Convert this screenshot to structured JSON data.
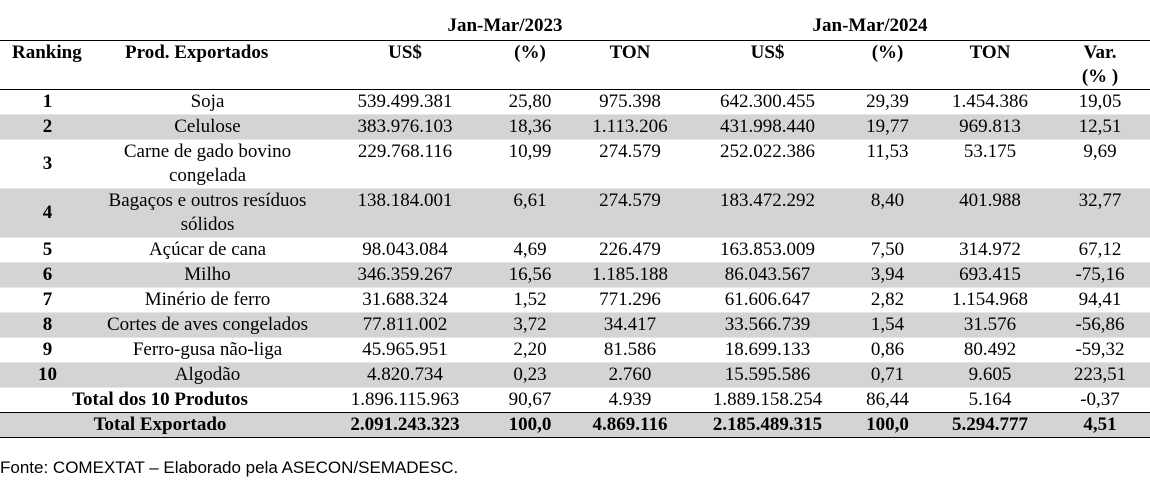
{
  "periods": [
    "Jan-Mar/2023",
    "Jan-Mar/2024"
  ],
  "headers": [
    "Ranking",
    "Prod. Exportados",
    "US$",
    "(%)",
    "TON",
    "US$",
    "(%)",
    "TON",
    "Var.\n(% )"
  ],
  "rows": [
    {
      "rank": "1",
      "product": "Soja",
      "usd23": "539.499.381",
      "pct23": "25,80",
      "ton23": "975.398",
      "usd24": "642.300.455",
      "pct24": "29,39",
      "ton24": "1.454.386",
      "var": "19,05"
    },
    {
      "rank": "2",
      "product": "Celulose",
      "usd23": "383.976.103",
      "pct23": "18,36",
      "ton23": "1.113.206",
      "usd24": "431.998.440",
      "pct24": "19,77",
      "ton24": "969.813",
      "var": "12,51"
    },
    {
      "rank": "3",
      "product": "Carne de gado bovino congelada",
      "usd23": "229.768.116",
      "pct23": "10,99",
      "ton23": "274.579",
      "usd24": "252.022.386",
      "pct24": "11,53",
      "ton24": "53.175",
      "var": "9,69"
    },
    {
      "rank": "4",
      "product": "Bagaços e outros resíduos sólidos",
      "usd23": "138.184.001",
      "pct23": "6,61",
      "ton23": "274.579",
      "usd24": "183.472.292",
      "pct24": "8,40",
      "ton24": "401.988",
      "var": "32,77"
    },
    {
      "rank": "5",
      "product": "Açúcar de cana",
      "usd23": "98.043.084",
      "pct23": "4,69",
      "ton23": "226.479",
      "usd24": "163.853.009",
      "pct24": "7,50",
      "ton24": "314.972",
      "var": "67,12"
    },
    {
      "rank": "6",
      "product": "Milho",
      "usd23": "346.359.267",
      "pct23": "16,56",
      "ton23": "1.185.188",
      "usd24": "86.043.567",
      "pct24": "3,94",
      "ton24": "693.415",
      "var": "-75,16"
    },
    {
      "rank": "7",
      "product": "Minério de ferro",
      "usd23": "31.688.324",
      "pct23": "1,52",
      "ton23": "771.296",
      "usd24": "61.606.647",
      "pct24": "2,82",
      "ton24": "1.154.968",
      "var": "94,41"
    },
    {
      "rank": "8",
      "product": "Cortes de aves congelados",
      "usd23": "77.811.002",
      "pct23": "3,72",
      "ton23": "34.417",
      "usd24": "33.566.739",
      "pct24": "1,54",
      "ton24": "31.576",
      "var": "-56,86"
    },
    {
      "rank": "9",
      "product": "Ferro-gusa não-liga",
      "usd23": "45.965.951",
      "pct23": "2,20",
      "ton23": "81.586",
      "usd24": "18.699.133",
      "pct24": "0,86",
      "ton24": "80.492",
      "var": "-59,32"
    },
    {
      "rank": "10",
      "product": "Algodão",
      "usd23": "4.820.734",
      "pct23": "0,23",
      "ton23": "2.760",
      "usd24": "15.595.586",
      "pct24": "0,71",
      "ton24": "9.605",
      "var": "223,51"
    }
  ],
  "total10": {
    "label": "Total dos 10 Produtos",
    "usd23": "1.896.115.963",
    "pct23": "90,67",
    "ton23": "4.939",
    "usd24": "1.889.158.254",
    "pct24": "86,44",
    "ton24": "5.164",
    "var": "-0,37"
  },
  "totalExport": {
    "label": "Total Exportado",
    "usd23": "2.091.243.323",
    "pct23": "100,0",
    "ton23": "4.869.116",
    "usd24": "2.185.489.315",
    "pct24": "100,0",
    "ton24": "5.294.777",
    "var": "4,51"
  },
  "source": "Fonte: COMEXTAT – Elaborado pela ASECON/SEMADESC."
}
